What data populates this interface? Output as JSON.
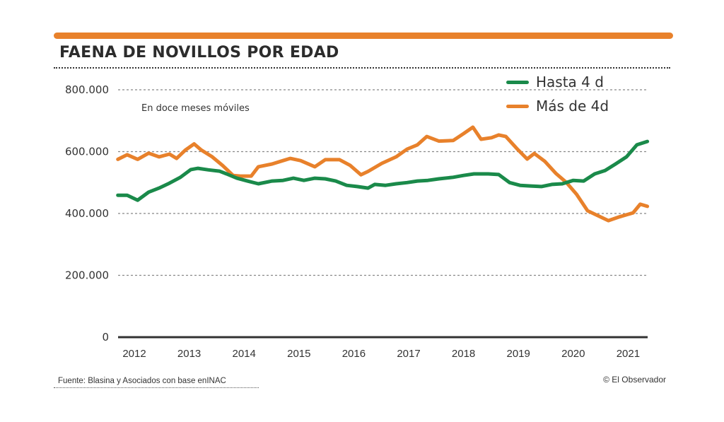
{
  "header": {
    "title": "FAENA DE NOVILLOS POR EDAD",
    "accent_color": "#e8812b"
  },
  "footer": {
    "source": "Fuente: Blasina y Asociados con base enINAC",
    "credit": "© El Observador"
  },
  "chart_data": {
    "type": "line",
    "title": "FAENA DE NOVILLOS POR EDAD",
    "subtitle": "En doce meses móviles",
    "xlabel": "",
    "ylabel": "",
    "ylim": [
      0,
      800000
    ],
    "xlim": [
      2011.7,
      2021.35
    ],
    "grid": true,
    "legend_position": "top-right",
    "y_ticks": [
      {
        "value": 0,
        "label": "0"
      },
      {
        "value": 200000,
        "label": "200.000"
      },
      {
        "value": 400000,
        "label": "400.000"
      },
      {
        "value": 600000,
        "label": "600.000"
      },
      {
        "value": 800000,
        "label": "800.000"
      }
    ],
    "x_ticks": [
      {
        "value": 2012,
        "label": "2012"
      },
      {
        "value": 2013,
        "label": "2013"
      },
      {
        "value": 2014,
        "label": "2014"
      },
      {
        "value": 2015,
        "label": "2015"
      },
      {
        "value": 2016,
        "label": "2016"
      },
      {
        "value": 2017,
        "label": "2017"
      },
      {
        "value": 2018,
        "label": "2018"
      },
      {
        "value": 2019,
        "label": "2019"
      },
      {
        "value": 2020,
        "label": "2020"
      },
      {
        "value": 2021,
        "label": "2021"
      }
    ],
    "series": [
      {
        "name": "Hasta 4 d",
        "color": "#1a8a4a",
        "points": [
          [
            2011.7,
            459000
          ],
          [
            2011.87,
            459000
          ],
          [
            2012.06,
            443000
          ],
          [
            2012.26,
            469000
          ],
          [
            2012.45,
            482000
          ],
          [
            2012.64,
            498000
          ],
          [
            2012.84,
            517000
          ],
          [
            2013.03,
            542000
          ],
          [
            2013.16,
            546000
          ],
          [
            2013.35,
            541000
          ],
          [
            2013.55,
            537000
          ],
          [
            2013.68,
            528000
          ],
          [
            2013.87,
            514000
          ],
          [
            2014.06,
            505000
          ],
          [
            2014.26,
            496000
          ],
          [
            2014.51,
            505000
          ],
          [
            2014.71,
            507000
          ],
          [
            2014.9,
            514000
          ],
          [
            2015.09,
            507000
          ],
          [
            2015.29,
            514000
          ],
          [
            2015.48,
            512000
          ],
          [
            2015.67,
            505000
          ],
          [
            2015.87,
            491000
          ],
          [
            2016.06,
            487000
          ],
          [
            2016.26,
            482000
          ],
          [
            2016.38,
            494000
          ],
          [
            2016.58,
            491000
          ],
          [
            2016.77,
            496000
          ],
          [
            2016.97,
            500000
          ],
          [
            2017.16,
            505000
          ],
          [
            2017.35,
            507000
          ],
          [
            2017.55,
            512000
          ],
          [
            2017.81,
            517000
          ],
          [
            2018.0,
            523000
          ],
          [
            2018.19,
            528000
          ],
          [
            2018.45,
            528000
          ],
          [
            2018.64,
            526000
          ],
          [
            2018.84,
            500000
          ],
          [
            2019.03,
            491000
          ],
          [
            2019.22,
            489000
          ],
          [
            2019.42,
            487000
          ],
          [
            2019.61,
            494000
          ],
          [
            2019.8,
            496000
          ],
          [
            2020.0,
            507000
          ],
          [
            2020.19,
            505000
          ],
          [
            2020.39,
            528000
          ],
          [
            2020.58,
            539000
          ],
          [
            2020.77,
            560000
          ],
          [
            2020.97,
            583000
          ],
          [
            2021.16,
            622000
          ],
          [
            2021.35,
            633000
          ]
        ]
      },
      {
        "name": "Más de 4d",
        "color": "#e8812b",
        "points": [
          [
            2011.7,
            575000
          ],
          [
            2011.87,
            590000
          ],
          [
            2012.06,
            575000
          ],
          [
            2012.26,
            595000
          ],
          [
            2012.45,
            583000
          ],
          [
            2012.64,
            592000
          ],
          [
            2012.77,
            578000
          ],
          [
            2012.93,
            605000
          ],
          [
            2013.09,
            625000
          ],
          [
            2013.22,
            605000
          ],
          [
            2013.42,
            583000
          ],
          [
            2013.61,
            555000
          ],
          [
            2013.8,
            523000
          ],
          [
            2013.93,
            521000
          ],
          [
            2014.13,
            521000
          ],
          [
            2014.26,
            551000
          ],
          [
            2014.51,
            560000
          ],
          [
            2014.71,
            571000
          ],
          [
            2014.84,
            578000
          ],
          [
            2015.03,
            571000
          ],
          [
            2015.29,
            551000
          ],
          [
            2015.48,
            574000
          ],
          [
            2015.74,
            574000
          ],
          [
            2015.93,
            556000
          ],
          [
            2016.13,
            525000
          ],
          [
            2016.26,
            536000
          ],
          [
            2016.51,
            562000
          ],
          [
            2016.77,
            583000
          ],
          [
            2016.97,
            608000
          ],
          [
            2017.16,
            622000
          ],
          [
            2017.33,
            649000
          ],
          [
            2017.55,
            634000
          ],
          [
            2017.81,
            636000
          ],
          [
            2018.0,
            658000
          ],
          [
            2018.17,
            679000
          ],
          [
            2018.32,
            640000
          ],
          [
            2018.51,
            645000
          ],
          [
            2018.64,
            654000
          ],
          [
            2018.77,
            649000
          ],
          [
            2018.97,
            610000
          ],
          [
            2019.16,
            576000
          ],
          [
            2019.29,
            594000
          ],
          [
            2019.48,
            569000
          ],
          [
            2019.68,
            530000
          ],
          [
            2019.87,
            501000
          ],
          [
            2020.06,
            462000
          ],
          [
            2020.26,
            409000
          ],
          [
            2020.45,
            393000
          ],
          [
            2020.64,
            377000
          ],
          [
            2020.84,
            389000
          ],
          [
            2021.09,
            402000
          ],
          [
            2021.22,
            430000
          ],
          [
            2021.35,
            423000
          ]
        ]
      }
    ]
  }
}
